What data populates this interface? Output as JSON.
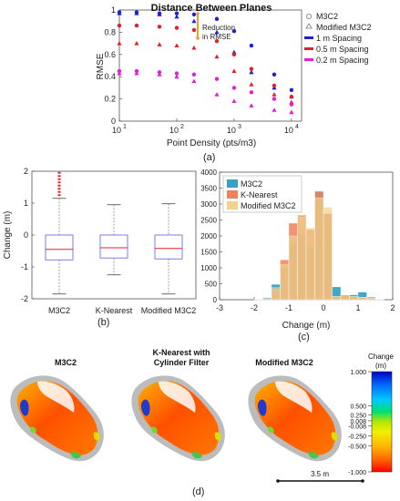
{
  "panels": {
    "a": {
      "title": "Distance Between Planes",
      "xlabel": "Point Density (pts/m3)",
      "ylabel": "RMSE",
      "annotation_line1": "Reduction",
      "annotation_line2": "in RMSE",
      "caption": "(a)",
      "xtick_labels": [
        "10",
        "10",
        "10",
        "10"
      ],
      "xtick_exponents": [
        "1",
        "2",
        "3",
        "4"
      ],
      "ytick_labels": [
        "0",
        "0.2",
        "0.4",
        "0.6",
        "0.8",
        "1"
      ],
      "legend_markers": [
        "M3C2",
        "Modified M3C2"
      ],
      "legend_spacing": [
        {
          "label": "1 m Spacing",
          "color": "#1f1fd6"
        },
        {
          "label": "0.5 m Spacing",
          "color": "#e0202a"
        },
        {
          "label": "0.2 m Spacing",
          "color": "#e020d8"
        }
      ]
    },
    "b": {
      "ylabel": "Change (m)",
      "caption": "(b)",
      "ytick_labels": [
        "-2",
        "-1",
        "0",
        "1",
        "2"
      ],
      "categories": [
        "M3C2",
        "K-Nearest",
        "Modified M3C2"
      ]
    },
    "c": {
      "xlabel": "Change (m)",
      "caption": "(c)",
      "ytick_labels": [
        "0",
        "500",
        "1000",
        "1500",
        "2000",
        "2500",
        "3000",
        "3500",
        "4000"
      ],
      "xtick_labels": [
        "-3",
        "-2",
        "-1",
        "0",
        "1",
        "2"
      ],
      "legend": [
        "M3C2",
        "K-Nearest",
        "Modified M3C2"
      ]
    },
    "d": {
      "labels": [
        "M3C2",
        "K-Nearest with",
        "Cylinder Filter",
        "Modified M3C2"
      ],
      "colorbar_title_1": "Change",
      "colorbar_title_2": "(m)",
      "colorbar_ticks": [
        "1.000",
        "0.500",
        "0.250",
        "0.008",
        "-0.008",
        "-0.250",
        "-0.500",
        "-1.000"
      ],
      "scalebar_label": "3.5 m",
      "caption": "(d)"
    }
  },
  "chart_data": [
    {
      "type": "scatter",
      "title": "Distance Between Planes",
      "xlabel": "Point Density (pts/m3)",
      "ylabel": "RMSE",
      "xscale": "log",
      "xlim": [
        10,
        15000
      ],
      "ylim": [
        0,
        1
      ],
      "grid": false,
      "legend_placement": "right",
      "series": [
        {
          "name": "M3C2",
          "spacing": "1 m Spacing",
          "marker": "circle",
          "color": "#1f1fd6",
          "x": [
            10,
            20,
            50,
            100,
            200,
            500,
            1000,
            2000,
            5000,
            10000
          ],
          "y": [
            0.98,
            0.98,
            0.97,
            0.97,
            0.96,
            0.92,
            0.81,
            0.68,
            0.42,
            0.28
          ]
        },
        {
          "name": "Modified M3C2",
          "spacing": "1 m Spacing",
          "marker": "triangle",
          "color": "#1f1fd6",
          "x": [
            10,
            20,
            50,
            100,
            200,
            500,
            1000,
            2000,
            5000,
            10000
          ],
          "y": [
            0.97,
            0.97,
            0.96,
            0.94,
            0.9,
            0.8,
            0.62,
            0.44,
            0.3,
            0.22
          ]
        },
        {
          "name": "M3C2",
          "spacing": "0.5 m Spacing",
          "marker": "circle",
          "color": "#e0202a",
          "x": [
            10,
            20,
            50,
            100,
            200,
            500,
            1000,
            2000,
            5000,
            10000
          ],
          "y": [
            0.86,
            0.86,
            0.85,
            0.84,
            0.82,
            0.72,
            0.6,
            0.47,
            0.32,
            0.22
          ]
        },
        {
          "name": "Modified M3C2",
          "spacing": "0.5 m Spacing",
          "marker": "triangle",
          "color": "#e0202a",
          "x": [
            10,
            20,
            50,
            100,
            200,
            500,
            1000,
            2000,
            5000,
            10000
          ],
          "y": [
            0.7,
            0.7,
            0.69,
            0.68,
            0.66,
            0.58,
            0.45,
            0.33,
            0.24,
            0.17
          ]
        },
        {
          "name": "M3C2",
          "spacing": "0.2 m Spacing",
          "marker": "circle",
          "color": "#e020d8",
          "x": [
            10,
            20,
            50,
            100,
            200,
            500,
            1000,
            2000,
            5000,
            10000
          ],
          "y": [
            0.45,
            0.45,
            0.44,
            0.43,
            0.42,
            0.38,
            0.3,
            0.26,
            0.2,
            0.15
          ]
        },
        {
          "name": "Modified M3C2",
          "spacing": "0.2 m Spacing",
          "marker": "triangle",
          "color": "#e020d8",
          "x": [
            10,
            20,
            50,
            100,
            200,
            500,
            1000,
            2000,
            5000,
            10000
          ],
          "y": [
            0.43,
            0.43,
            0.42,
            0.4,
            0.36,
            0.24,
            0.18,
            0.14,
            0.1,
            0.08
          ]
        }
      ]
    },
    {
      "type": "box",
      "ylabel": "Change (m)",
      "ylim": [
        -2,
        2
      ],
      "categories": [
        "M3C2",
        "K-Nearest",
        "Modified M3C2"
      ],
      "color": "#6e6ee8",
      "median_color": "#e0202a",
      "boxes": [
        {
          "min": -1.85,
          "q1": -0.78,
          "median": -0.45,
          "q3": 0.0,
          "max": 1.15,
          "outliers": [
            1.25,
            1.35,
            1.45,
            1.55,
            1.65,
            1.75,
            1.85,
            1.95
          ]
        },
        {
          "min": -1.25,
          "q1": -0.72,
          "median": -0.4,
          "q3": 0.0,
          "max": 0.95,
          "outliers": []
        },
        {
          "min": -1.85,
          "q1": -0.75,
          "median": -0.42,
          "q3": 0.0,
          "max": 0.98,
          "outliers": []
        }
      ]
    },
    {
      "type": "histogram",
      "xlabel": "Change (m)",
      "xlim": [
        -3,
        2
      ],
      "ylim": [
        0,
        4000
      ],
      "bin_width": 0.25,
      "bin_starts": [
        -2.0,
        -1.75,
        -1.5,
        -1.25,
        -1.0,
        -0.75,
        -0.5,
        -0.25,
        0.0,
        0.25,
        0.5,
        0.75,
        1.0,
        1.25,
        1.5
      ],
      "legend_placement": "top-left",
      "series": [
        {
          "name": "M3C2",
          "color": "#3aa0c8",
          "values": [
            20,
            60,
            480,
            1000,
            1750,
            2050,
            1650,
            3400,
            2700,
            400,
            150,
            150,
            240,
            80,
            20
          ]
        },
        {
          "name": "K-Nearest",
          "color": "#f0805c",
          "values": [
            10,
            30,
            300,
            1250,
            2400,
            2650,
            2200,
            3400,
            2700,
            100,
            150,
            100,
            80,
            50,
            10
          ]
        },
        {
          "name": "Modified M3C2",
          "color": "#f0d28a",
          "values": [
            10,
            30,
            380,
            1100,
            2000,
            2600,
            2250,
            3200,
            2900,
            100,
            150,
            100,
            80,
            40,
            10
          ]
        }
      ]
    },
    {
      "type": "colorbar",
      "title": "Change (m)",
      "vmin": -1.0,
      "vmax": 1.0,
      "colors_top_to_bottom": [
        "#0000c8",
        "#00b4ff",
        "#00e070",
        "#b4e600",
        "#f0f000",
        "#ffb400",
        "#ff6400",
        "#ff0000"
      ],
      "ticks": [
        1.0,
        0.5,
        0.25,
        0.008,
        -0.008,
        -0.25,
        -0.5,
        -1.0
      ]
    }
  ]
}
